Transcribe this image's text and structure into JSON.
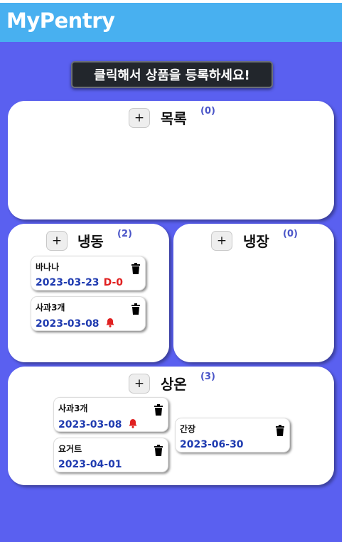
{
  "app": {
    "title": "MyPentry"
  },
  "register_button": {
    "label": "클릭해서 상품을 등록하세요!"
  },
  "add_label": "+",
  "sections": {
    "list": {
      "title": "목록",
      "count": "(0)"
    },
    "freezer": {
      "title": "냉동",
      "count": "(2)",
      "items": [
        {
          "name": "바나나",
          "date": "2023-03-23",
          "badge": "D-0"
        },
        {
          "name": "사과3개",
          "date": "2023-03-08",
          "alert": "bell-icon"
        }
      ]
    },
    "fridge": {
      "title": "냉장",
      "count": "(0)"
    },
    "room": {
      "title": "상온",
      "count": "(3)",
      "items": [
        {
          "name": "사과3개",
          "date": "2023-03-08",
          "alert": "bell-icon"
        },
        {
          "name": "요거트",
          "date": "2023-04-01"
        },
        {
          "name": "간장",
          "date": "2023-06-30"
        }
      ]
    }
  },
  "colors": {
    "header": "#48b0f0",
    "background": "#5a60f0",
    "date": "#1f3bb0",
    "alert": "#e02020",
    "count": "#4a55c8"
  }
}
